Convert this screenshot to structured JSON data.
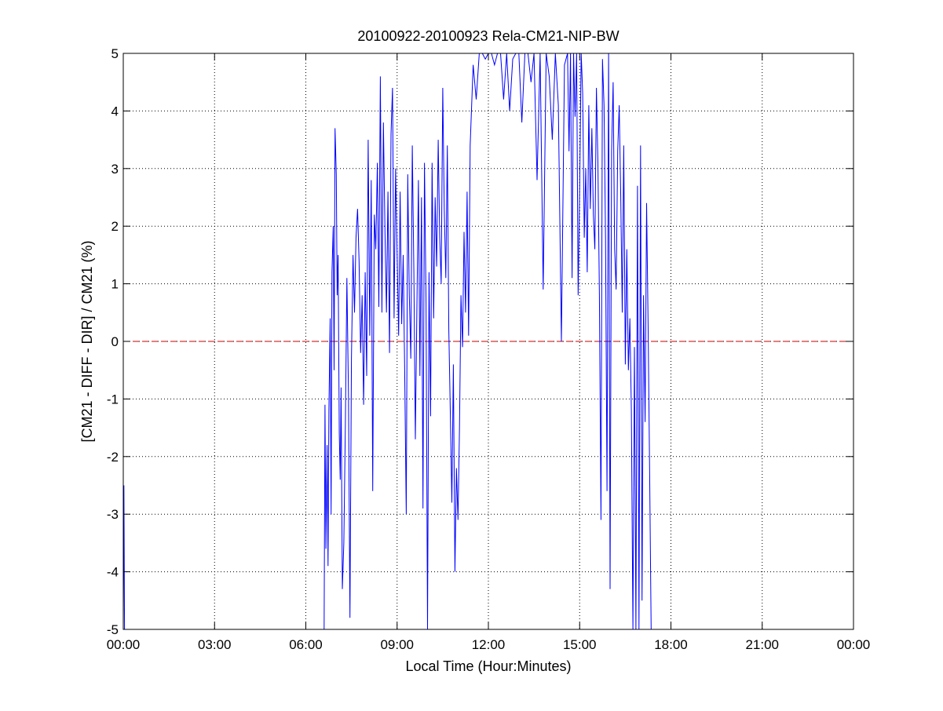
{
  "chart_data": {
    "type": "line",
    "title": "20100922-20100923 Rela-CM21-NIP-BW",
    "xlabel": "Local Time (Hour:Minutes)",
    "ylabel": "[CM21 - DIFF - DIR] / CM21 (%)",
    "xlim": [
      0,
      24
    ],
    "ylim": [
      -5,
      5
    ],
    "x_ticks": [
      0,
      3,
      6,
      9,
      12,
      15,
      18,
      21,
      24
    ],
    "x_tick_labels": [
      "00:00",
      "03:00",
      "06:00",
      "09:00",
      "12:00",
      "15:00",
      "18:00",
      "21:00",
      "00:00"
    ],
    "y_ticks": [
      -5,
      -4,
      -3,
      -2,
      -1,
      0,
      1,
      2,
      3,
      4,
      5
    ],
    "y_tick_labels": [
      "-5",
      "-4",
      "-3",
      "-2",
      "-1",
      "0",
      "1",
      "2",
      "3",
      "4",
      "5"
    ],
    "grid": true,
    "grid_style": "dotted",
    "reference_line": {
      "y": 0,
      "color": "#cc0000",
      "style": "dashed"
    },
    "series": [
      {
        "color": "#0000ff",
        "x": [
          0.0,
          0.02,
          0.04,
          6.6,
          6.63,
          6.66,
          6.7,
          6.73,
          6.76,
          6.8,
          6.83,
          6.86,
          6.9,
          6.93,
          6.96,
          7.0,
          7.03,
          7.06,
          7.1,
          7.13,
          7.16,
          7.2,
          7.25,
          7.3,
          7.35,
          7.4,
          7.45,
          7.5,
          7.55,
          7.6,
          7.65,
          7.7,
          7.75,
          7.8,
          7.85,
          7.9,
          7.95,
          8.0,
          8.05,
          8.1,
          8.15,
          8.2,
          8.25,
          8.3,
          8.35,
          8.4,
          8.45,
          8.5,
          8.55,
          8.6,
          8.65,
          8.7,
          8.75,
          8.8,
          8.85,
          8.9,
          8.95,
          9.0,
          9.05,
          9.1,
          9.15,
          9.2,
          9.25,
          9.3,
          9.35,
          9.4,
          9.45,
          9.5,
          9.55,
          9.6,
          9.65,
          9.7,
          9.75,
          9.8,
          9.85,
          9.9,
          9.95,
          10.0,
          10.05,
          10.1,
          10.15,
          10.2,
          10.25,
          10.3,
          10.35,
          10.4,
          10.45,
          10.5,
          10.55,
          10.6,
          10.65,
          10.7,
          10.75,
          10.8,
          10.85,
          10.9,
          10.95,
          11.0,
          11.05,
          11.1,
          11.15,
          11.2,
          11.25,
          11.3,
          11.35,
          11.4,
          11.5,
          11.6,
          11.7,
          11.8,
          11.9,
          12.0,
          12.1,
          12.2,
          12.3,
          12.4,
          12.5,
          12.6,
          12.7,
          12.8,
          12.9,
          13.0,
          13.1,
          13.2,
          13.3,
          13.4,
          13.5,
          13.6,
          13.7,
          13.8,
          13.9,
          14.0,
          14.1,
          14.2,
          14.3,
          14.4,
          14.5,
          14.6,
          14.65,
          14.7,
          14.75,
          14.8,
          14.85,
          14.9,
          14.95,
          15.0,
          15.05,
          15.1,
          15.15,
          15.2,
          15.25,
          15.3,
          15.35,
          15.4,
          15.45,
          15.5,
          15.55,
          15.6,
          15.65,
          15.7,
          15.75,
          15.8,
          15.85,
          15.9,
          15.95,
          16.0,
          16.05,
          16.1,
          16.15,
          16.2,
          16.25,
          16.3,
          16.35,
          16.4,
          16.45,
          16.5,
          16.55,
          16.6,
          16.65,
          16.7,
          16.75,
          16.8,
          16.85,
          16.9,
          16.95,
          17.0,
          17.05,
          17.1,
          17.15,
          17.2,
          17.25,
          17.3,
          17.35
        ],
        "y": [
          -5.0,
          -2.5,
          -5.0,
          -5.0,
          -1.1,
          -3.6,
          -1.8,
          -3.9,
          -1.2,
          0.4,
          -3.0,
          1.2,
          2.0,
          -0.5,
          3.7,
          2.9,
          0.8,
          1.5,
          -1.6,
          -2.4,
          -0.8,
          -4.3,
          -3.5,
          -1.4,
          1.1,
          -0.9,
          -4.8,
          -0.3,
          1.5,
          0.5,
          1.8,
          2.3,
          1.4,
          -0.2,
          0.8,
          -1.1,
          1.2,
          -0.6,
          3.5,
          0.1,
          2.8,
          -2.6,
          2.2,
          1.6,
          3.1,
          0.6,
          4.6,
          0.5,
          3.8,
          1.9,
          0.5,
          2.6,
          -0.2,
          3.6,
          4.4,
          0.4,
          3.0,
          1.5,
          0.1,
          2.6,
          0.3,
          1.5,
          -0.5,
          -3.0,
          2.9,
          0.8,
          -0.3,
          3.4,
          1.2,
          -1.7,
          0.5,
          2.8,
          -0.6,
          2.5,
          -2.9,
          3.1,
          0.7,
          -5.0,
          1.2,
          -1.3,
          3.1,
          0.4,
          2.5,
          1.3,
          3.5,
          1.8,
          1.0,
          4.4,
          2.3,
          1.1,
          3.4,
          0.2,
          -1.3,
          -2.8,
          -0.4,
          -4.0,
          -2.2,
          -3.1,
          -1.5,
          0.8,
          -0.1,
          1.9,
          0.5,
          2.6,
          0.1,
          3.4,
          4.8,
          4.2,
          5.0,
          5.0,
          4.9,
          5.0,
          5.0,
          4.8,
          5.0,
          5.0,
          4.2,
          5.0,
          4.0,
          4.9,
          5.0,
          5.0,
          3.8,
          5.0,
          5.0,
          4.5,
          5.0,
          2.8,
          5.0,
          0.9,
          5.0,
          4.6,
          3.5,
          5.0,
          4.1,
          0.0,
          4.8,
          5.0,
          3.3,
          5.0,
          1.1,
          5.0,
          3.9,
          5.0,
          0.8,
          2.7,
          5.0,
          4.3,
          1.8,
          3.0,
          1.2,
          4.1,
          2.3,
          3.7,
          2.2,
          1.6,
          4.4,
          3.1,
          0.8,
          -3.1,
          4.9,
          4.1,
          1.8,
          -2.6,
          5.0,
          -4.3,
          3.3,
          4.5,
          1.6,
          0.9,
          3.3,
          4.1,
          2.5,
          0.5,
          3.4,
          -0.4,
          1.6,
          -0.5,
          0.4,
          -1.2,
          -5.0,
          -0.1,
          -5.0,
          2.7,
          -5.0,
          3.4,
          -4.5,
          0.8,
          -1.4,
          2.4,
          0.3,
          -2.3,
          -5.0
        ]
      }
    ]
  }
}
